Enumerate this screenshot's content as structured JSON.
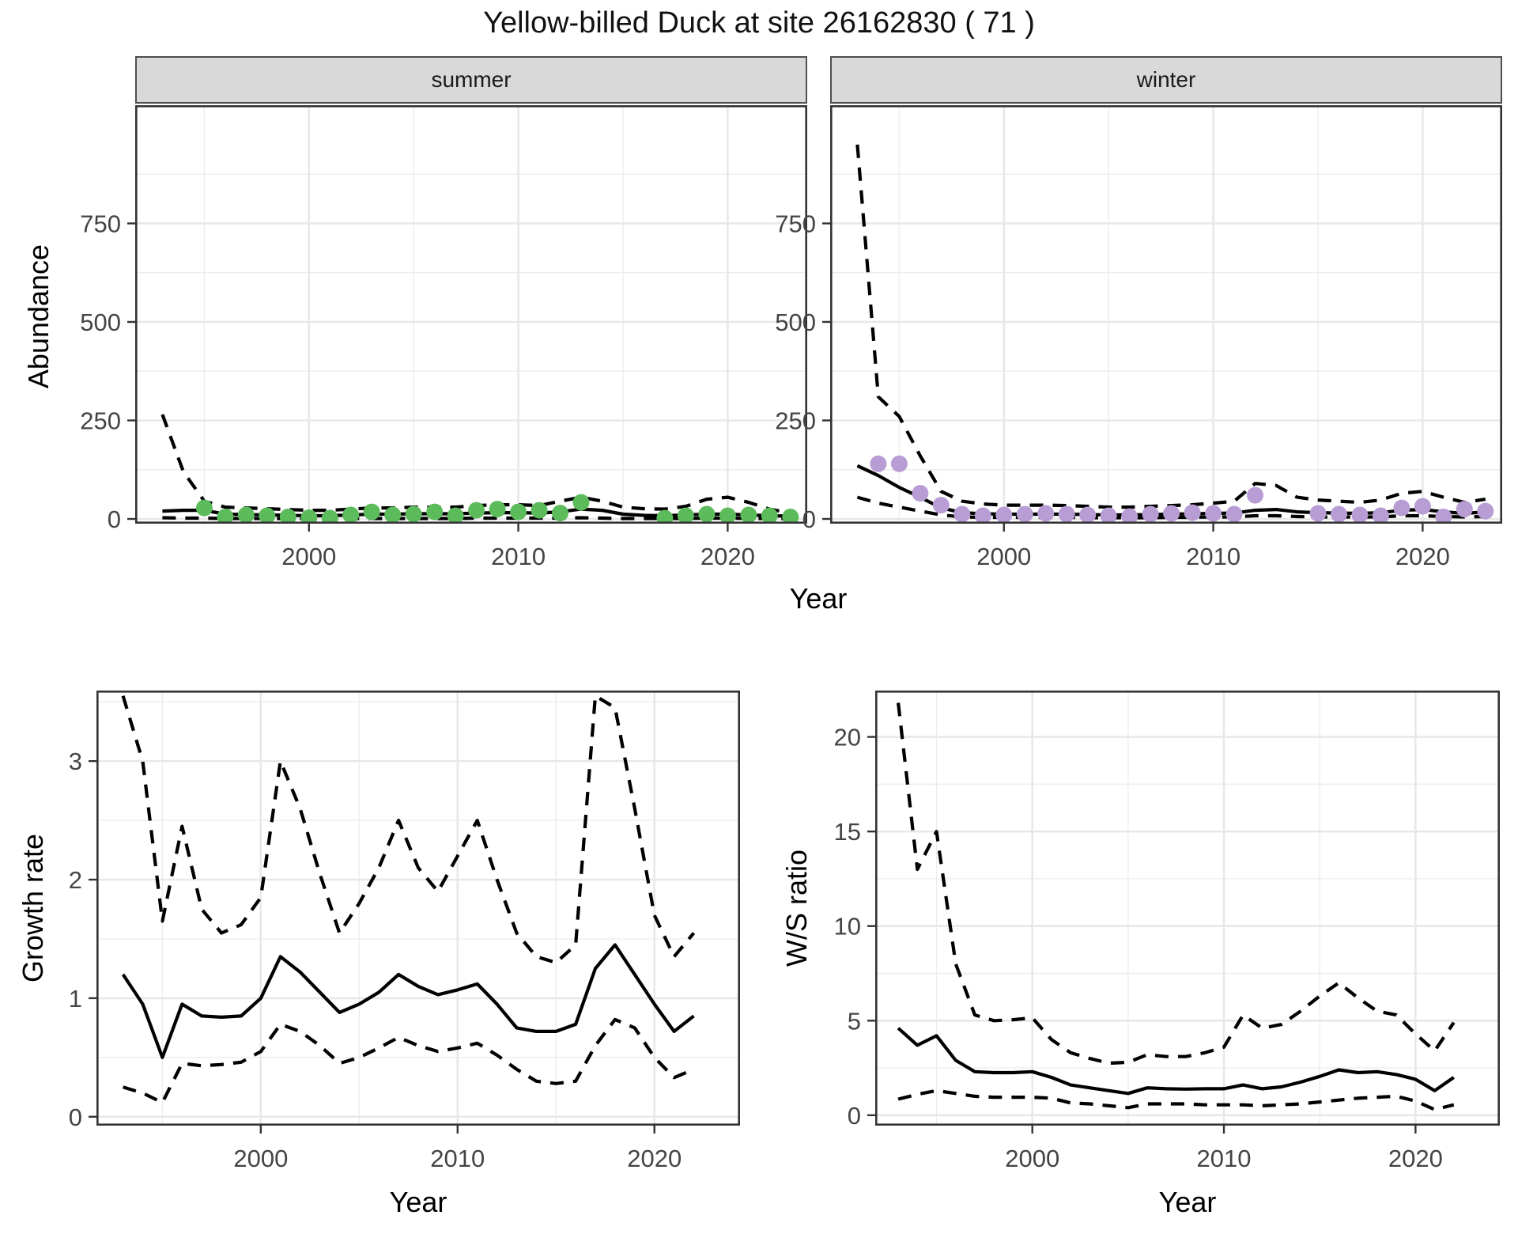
{
  "title": "Yellow-billed Duck at site 26162830 ( 71 )",
  "colors": {
    "summer_point": "#5CBB5A",
    "winter_point": "#B89CD4",
    "line": "#000000",
    "grid_major": "#E8E8E8",
    "grid_minor": "#EDEDED",
    "panel_border": "#333333",
    "strip_bg": "#D9D9D9",
    "axis_text": "#444444"
  },
  "chart_data": [
    {
      "id": "summer-abundance",
      "type": "line",
      "facet": "summer",
      "xlabel": "Year",
      "ylabel": "Abundance",
      "xlim": [
        1991.7,
        2023.8
      ],
      "ylim": [
        -12,
        1050
      ],
      "xticks": {
        "major": [
          2000,
          2010,
          2020
        ],
        "labels": [
          "2000",
          "2010",
          "2020"
        ],
        "minor": [
          1995,
          2005,
          2015
        ]
      },
      "yticks": {
        "major": [
          0,
          250,
          500,
          750
        ],
        "labels": [
          "0",
          "250",
          "500",
          "750"
        ],
        "minor": [
          125,
          375,
          625,
          875
        ]
      },
      "x_years": [
        1993,
        1994,
        1995,
        1996,
        1997,
        1998,
        1999,
        2000,
        2001,
        2002,
        2003,
        2004,
        2005,
        2006,
        2007,
        2008,
        2009,
        2010,
        2011,
        2012,
        2013,
        2014,
        2015,
        2016,
        2017,
        2018,
        2019,
        2020,
        2021,
        2022,
        2023
      ],
      "series": [
        {
          "name": "median",
          "style": "solid",
          "values": [
            20,
            22,
            22,
            12,
            11,
            10,
            9,
            8,
            8,
            10,
            12,
            12,
            13,
            13,
            13,
            15,
            16,
            16,
            15,
            18,
            25,
            22,
            12,
            9,
            8,
            10,
            12,
            12,
            10,
            8,
            7
          ]
        },
        {
          "name": "upper_ci",
          "style": "dashed",
          "values": [
            265,
            120,
            45,
            30,
            28,
            26,
            24,
            22,
            22,
            25,
            28,
            28,
            30,
            30,
            30,
            34,
            36,
            36,
            34,
            45,
            55,
            45,
            30,
            26,
            25,
            32,
            50,
            55,
            42,
            25,
            15
          ]
        },
        {
          "name": "lower_ci",
          "style": "dashed",
          "values": [
            3,
            2,
            2,
            1,
            1,
            1,
            1,
            1,
            1,
            1,
            1,
            1,
            1,
            1,
            1,
            2,
            2,
            2,
            2,
            2,
            3,
            2,
            1,
            1,
            1,
            1,
            2,
            2,
            1,
            1,
            0
          ]
        }
      ],
      "points": {
        "name": "observed-counts",
        "color_key": "summer_point",
        "xy": [
          [
            1995,
            28
          ],
          [
            1996,
            5
          ],
          [
            1997,
            10
          ],
          [
            1998,
            8
          ],
          [
            1999,
            5
          ],
          [
            2000,
            3
          ],
          [
            2001,
            2
          ],
          [
            2002,
            10
          ],
          [
            2003,
            18
          ],
          [
            2004,
            10
          ],
          [
            2005,
            12
          ],
          [
            2006,
            18
          ],
          [
            2007,
            8
          ],
          [
            2008,
            22
          ],
          [
            2009,
            25
          ],
          [
            2010,
            18
          ],
          [
            2011,
            22
          ],
          [
            2012,
            15
          ],
          [
            2013,
            42
          ],
          [
            2017,
            2
          ],
          [
            2018,
            8
          ],
          [
            2019,
            12
          ],
          [
            2020,
            8
          ],
          [
            2021,
            10
          ],
          [
            2022,
            8
          ],
          [
            2023,
            5
          ]
        ]
      }
    },
    {
      "id": "winter-abundance",
      "type": "line",
      "facet": "winter",
      "xlabel": "Year",
      "ylabel": "Abundance",
      "xlim": [
        1991.7,
        2023.8
      ],
      "ylim": [
        -12,
        1050
      ],
      "xticks": {
        "major": [
          2000,
          2010,
          2020
        ],
        "labels": [
          "2000",
          "2010",
          "2020"
        ],
        "minor": [
          1995,
          2005,
          2015
        ]
      },
      "yticks": {
        "major": [
          0,
          250,
          500,
          750
        ],
        "labels": [
          "0",
          "250",
          "500",
          "750"
        ],
        "minor": [
          125,
          375,
          625,
          875
        ]
      },
      "x_years": [
        1993,
        1994,
        1995,
        1996,
        1997,
        1998,
        1999,
        2000,
        2001,
        2002,
        2003,
        2004,
        2005,
        2006,
        2007,
        2008,
        2009,
        2010,
        2011,
        2012,
        2013,
        2014,
        2015,
        2016,
        2017,
        2018,
        2019,
        2020,
        2021,
        2022,
        2023
      ],
      "series": [
        {
          "name": "median",
          "style": "solid",
          "values": [
            135,
            110,
            80,
            55,
            28,
            16,
            13,
            12,
            12,
            12,
            12,
            11,
            10,
            10,
            11,
            12,
            13,
            14,
            15,
            22,
            24,
            18,
            16,
            15,
            14,
            16,
            22,
            24,
            18,
            14,
            18
          ]
        },
        {
          "name": "upper_ci",
          "style": "dashed",
          "values": [
            950,
            310,
            260,
            160,
            70,
            45,
            38,
            35,
            35,
            35,
            34,
            32,
            30,
            30,
            32,
            34,
            36,
            40,
            45,
            90,
            85,
            55,
            48,
            45,
            42,
            48,
            65,
            70,
            55,
            42,
            50
          ]
        },
        {
          "name": "lower_ci",
          "style": "dashed",
          "values": [
            55,
            40,
            30,
            20,
            10,
            5,
            4,
            4,
            4,
            4,
            4,
            3,
            3,
            3,
            3,
            4,
            4,
            5,
            5,
            8,
            8,
            6,
            5,
            5,
            5,
            5,
            8,
            8,
            6,
            5,
            6
          ]
        }
      ],
      "points": {
        "name": "observed-counts",
        "color_key": "winter_point",
        "xy": [
          [
            1994,
            140
          ],
          [
            1995,
            140
          ],
          [
            1996,
            65
          ],
          [
            1997,
            35
          ],
          [
            1998,
            12
          ],
          [
            1999,
            8
          ],
          [
            2000,
            10
          ],
          [
            2001,
            12
          ],
          [
            2002,
            14
          ],
          [
            2003,
            12
          ],
          [
            2004,
            10
          ],
          [
            2005,
            8
          ],
          [
            2006,
            6
          ],
          [
            2007,
            12
          ],
          [
            2008,
            14
          ],
          [
            2009,
            16
          ],
          [
            2010,
            14
          ],
          [
            2011,
            12
          ],
          [
            2012,
            60
          ],
          [
            2015,
            14
          ],
          [
            2016,
            12
          ],
          [
            2017,
            10
          ],
          [
            2018,
            8
          ],
          [
            2019,
            28
          ],
          [
            2020,
            32
          ],
          [
            2021,
            5
          ],
          [
            2022,
            25
          ],
          [
            2023,
            20
          ]
        ]
      }
    },
    {
      "id": "growth-rate",
      "type": "line",
      "facet": "",
      "xlabel": "Year",
      "ylabel": "Growth rate",
      "xlim": [
        1991.65,
        2024.35
      ],
      "ylim": [
        -0.075,
        3.595
      ],
      "xticks": {
        "major": [
          2000,
          2010,
          2020
        ],
        "labels": [
          "2000",
          "2010",
          "2020"
        ],
        "minor": [
          1995,
          2005,
          2015
        ]
      },
      "yticks": {
        "major": [
          0,
          1,
          2,
          3
        ],
        "labels": [
          "0",
          "1",
          "2",
          "3"
        ],
        "minor": [
          0.5,
          1.5,
          2.5,
          3.5
        ]
      },
      "x_years": [
        1993,
        1994,
        1995,
        1996,
        1997,
        1998,
        1999,
        2000,
        2001,
        2002,
        2003,
        2004,
        2005,
        2006,
        2007,
        2008,
        2009,
        2010,
        2011,
        2012,
        2013,
        2014,
        2015,
        2016,
        2017,
        2018,
        2019,
        2020,
        2021,
        2022
      ],
      "series": [
        {
          "name": "median",
          "style": "solid",
          "values": [
            1.2,
            0.95,
            0.5,
            0.95,
            0.85,
            0.84,
            0.85,
            1.0,
            1.35,
            1.22,
            1.05,
            0.88,
            0.95,
            1.05,
            1.2,
            1.1,
            1.03,
            1.07,
            1.12,
            0.95,
            0.75,
            0.72,
            0.72,
            0.78,
            1.25,
            1.45,
            1.2,
            0.95,
            0.72,
            0.85
          ]
        },
        {
          "name": "upper_ci",
          "style": "dashed",
          "values": [
            3.55,
            3.0,
            1.65,
            2.45,
            1.75,
            1.55,
            1.62,
            1.85,
            3.0,
            2.6,
            2.05,
            1.55,
            1.8,
            2.1,
            2.5,
            2.1,
            1.9,
            2.2,
            2.5,
            2.0,
            1.55,
            1.35,
            1.3,
            1.45,
            3.55,
            3.45,
            2.6,
            1.7,
            1.35,
            1.55
          ]
        },
        {
          "name": "lower_ci",
          "style": "dashed",
          "values": [
            0.25,
            0.2,
            0.12,
            0.45,
            0.43,
            0.44,
            0.46,
            0.55,
            0.78,
            0.72,
            0.6,
            0.45,
            0.5,
            0.58,
            0.67,
            0.6,
            0.55,
            0.58,
            0.62,
            0.52,
            0.4,
            0.3,
            0.28,
            0.3,
            0.6,
            0.82,
            0.75,
            0.5,
            0.33,
            0.4
          ]
        }
      ],
      "points": null
    },
    {
      "id": "ws-ratio",
      "type": "line",
      "facet": "",
      "xlabel": "Year",
      "ylabel": "W/S ratio",
      "xlim": [
        1991.8,
        2024.4
      ],
      "ylim": [
        -0.55,
        22.45
      ],
      "xticks": {
        "major": [
          2000,
          2010,
          2020
        ],
        "labels": [
          "2000",
          "2010",
          "2020"
        ],
        "minor": [
          1995,
          2005,
          2015
        ]
      },
      "yticks": {
        "major": [
          0,
          5,
          10,
          15,
          20
        ],
        "labels": [
          "0",
          "5",
          "10",
          "15",
          "20"
        ],
        "minor": [
          2.5,
          7.5,
          12.5,
          17.5
        ]
      },
      "x_years": [
        1993,
        1994,
        1995,
        1996,
        1997,
        1998,
        1999,
        2000,
        2001,
        2002,
        2003,
        2004,
        2005,
        2006,
        2007,
        2008,
        2009,
        2010,
        2011,
        2012,
        2013,
        2014,
        2015,
        2016,
        2017,
        2018,
        2019,
        2020,
        2021,
        2022
      ],
      "series": [
        {
          "name": "median",
          "style": "solid",
          "values": [
            4.6,
            3.7,
            4.2,
            2.9,
            2.3,
            2.25,
            2.25,
            2.3,
            2.0,
            1.6,
            1.45,
            1.3,
            1.15,
            1.45,
            1.4,
            1.38,
            1.4,
            1.4,
            1.6,
            1.4,
            1.5,
            1.75,
            2.05,
            2.4,
            2.25,
            2.3,
            2.15,
            1.9,
            1.3,
            2.0
          ]
        },
        {
          "name": "upper_ci",
          "style": "dashed",
          "values": [
            21.8,
            13.0,
            15.0,
            8.0,
            5.3,
            5.0,
            5.05,
            5.15,
            4.0,
            3.3,
            3.0,
            2.75,
            2.8,
            3.2,
            3.1,
            3.1,
            3.3,
            3.6,
            5.3,
            4.6,
            4.8,
            5.5,
            6.3,
            7.0,
            6.2,
            5.5,
            5.3,
            4.3,
            3.4,
            4.9
          ]
        },
        {
          "name": "lower_ci",
          "style": "dashed",
          "values": [
            0.85,
            1.1,
            1.3,
            1.15,
            1.0,
            0.95,
            0.95,
            0.95,
            0.9,
            0.65,
            0.6,
            0.5,
            0.4,
            0.6,
            0.6,
            0.6,
            0.55,
            0.55,
            0.55,
            0.5,
            0.55,
            0.6,
            0.7,
            0.8,
            0.9,
            0.95,
            1.0,
            0.75,
            0.3,
            0.55
          ]
        }
      ],
      "points": null
    }
  ]
}
